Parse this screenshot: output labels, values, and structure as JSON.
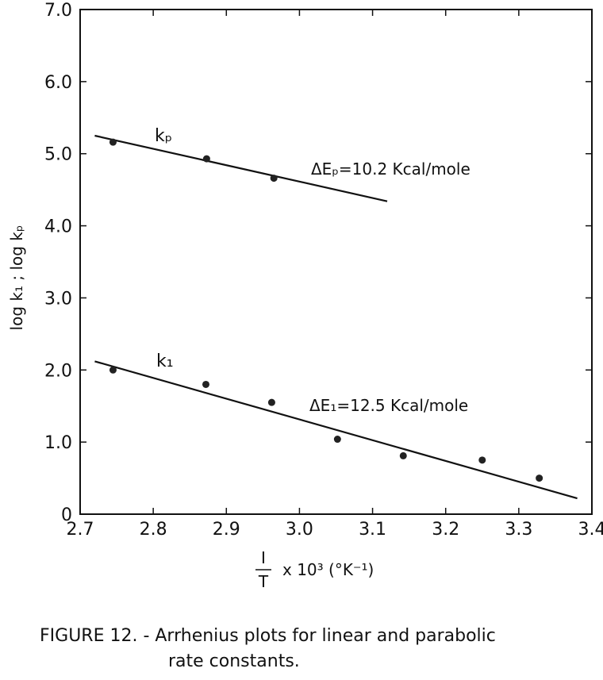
{
  "chart_data": {
    "type": "scatter",
    "xlim": [
      2.7,
      3.4
    ],
    "ylim": [
      0,
      7.0
    ],
    "xticks": [
      "2.7",
      "2.8",
      "2.9",
      "3.0",
      "3.1",
      "3.2",
      "3.3",
      "3.4"
    ],
    "yticks": [
      "0",
      "1.0",
      "2.0",
      "3.0",
      "4.0",
      "5.0",
      "6.0",
      "7.0"
    ],
    "xlabel": {
      "frac_num": "I",
      "frac_den": "T",
      "rest": "x 10³ (°K⁻¹)"
    },
    "ylabel": "log k₁ ; log kₚ",
    "grid": false,
    "series": [
      {
        "name": "kₚ",
        "points": [
          {
            "x": 2.745,
            "y": 5.16
          },
          {
            "x": 2.873,
            "y": 4.93
          },
          {
            "x": 2.965,
            "y": 4.66
          }
        ],
        "fit_line": [
          [
            2.72,
            5.25
          ],
          [
            3.12,
            4.34
          ]
        ],
        "annotation": {
          "delta": "ΔEₚ",
          "value": "=10.2  Kcal/mole"
        }
      },
      {
        "name": "k₁",
        "points": [
          {
            "x": 2.745,
            "y": 2.0
          },
          {
            "x": 2.872,
            "y": 1.8
          },
          {
            "x": 2.962,
            "y": 1.55
          },
          {
            "x": 3.052,
            "y": 1.04
          },
          {
            "x": 3.142,
            "y": 0.81
          },
          {
            "x": 3.25,
            "y": 0.75
          },
          {
            "x": 3.328,
            "y": 0.5
          }
        ],
        "fit_line": [
          [
            2.72,
            2.12
          ],
          [
            3.38,
            0.22
          ]
        ],
        "annotation": {
          "delta": "ΔE₁",
          "value": "=12.5  Kcal/mole"
        }
      }
    ]
  },
  "caption": {
    "line1": "FIGURE 12. - Arrhenius plots for linear and parabolic",
    "line2": "rate constants."
  }
}
